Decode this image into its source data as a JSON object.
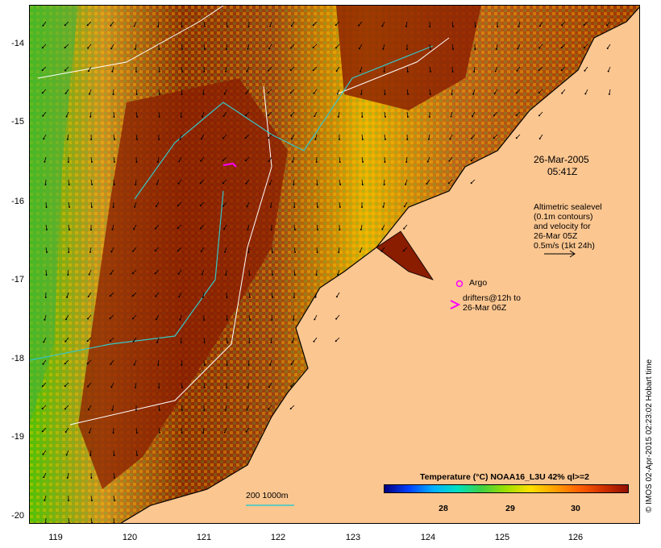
{
  "map": {
    "y_ticks": [
      "-14",
      "-15",
      "-16",
      "-17",
      "-18",
      "-19",
      "-20"
    ],
    "x_ticks": [
      "119",
      "120",
      "121",
      "122",
      "123",
      "124",
      "125",
      "126"
    ],
    "lon_range": [
      118.65,
      126.75
    ],
    "lat_range": [
      -20.12,
      -13.55
    ],
    "colors": {
      "land": "#fcc690",
      "coast": "#000000",
      "contour_white": "#ffffff",
      "contour_cyan": "#35c7c7",
      "drifter": "#ff00ff"
    }
  },
  "annotations": {
    "date": "26-Mar-2005",
    "time": "05:41Z",
    "altimetry_lines": [
      "Altimetric sealevel",
      "(0.1m contours)",
      "and velocity for",
      "26-Mar 05Z",
      "0.5m/s (1kt 24h)"
    ],
    "argo_label": "Argo",
    "drifter_lines": [
      "drifters@12h to",
      "26-Mar 06Z"
    ],
    "contour_legend": "200  1000m"
  },
  "colorbar": {
    "title": "Temperature (°C) NOAA16_L3U 42% ql>=2",
    "ticks": [
      "28",
      "29",
      "30"
    ],
    "colors": [
      "#000080",
      "#0040ff",
      "#00b0ff",
      "#00e0c0",
      "#40d040",
      "#a0e000",
      "#ffe000",
      "#ffa000",
      "#ff6000",
      "#d03000",
      "#901000"
    ]
  },
  "credit": "© IMOS 02-Apr-2015 02:23:02 Hobart time"
}
